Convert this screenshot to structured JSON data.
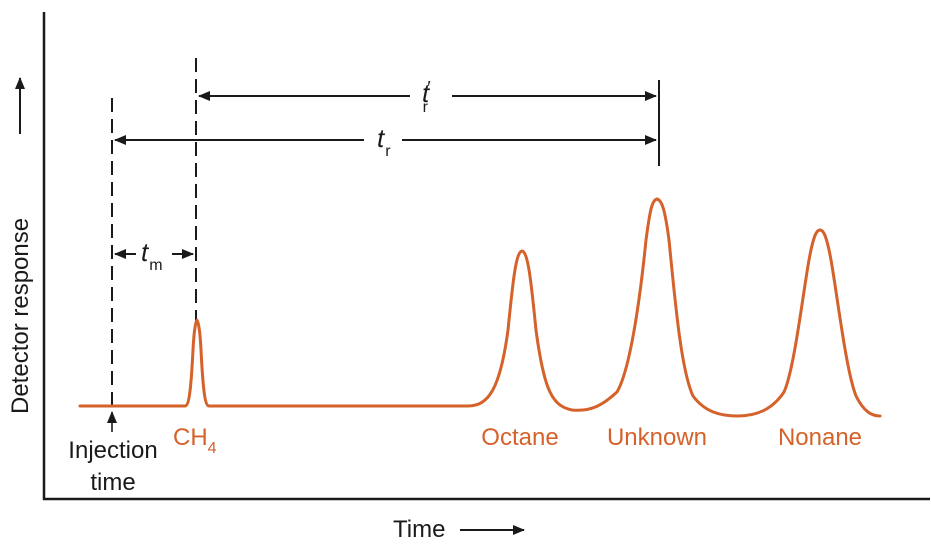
{
  "axes": {
    "x_label": "Time",
    "y_label": "Detector response"
  },
  "markers": {
    "injection_label_line1": "Injection",
    "injection_label_line2": "time"
  },
  "peaks": [
    {
      "label": "CH",
      "label_subscript": "4"
    },
    {
      "label": "Octane"
    },
    {
      "label": "Unknown"
    },
    {
      "label": "Nonane"
    }
  ],
  "intervals": {
    "tm": {
      "symbol": "t",
      "subscript": "m"
    },
    "tr": {
      "symbol": "t",
      "subscript": "r"
    },
    "tr_prime": {
      "symbol": "t",
      "prime": "′",
      "subscript": "r"
    }
  },
  "colors": {
    "trace": "#d4622a",
    "ink": "#1a1a1a"
  }
}
